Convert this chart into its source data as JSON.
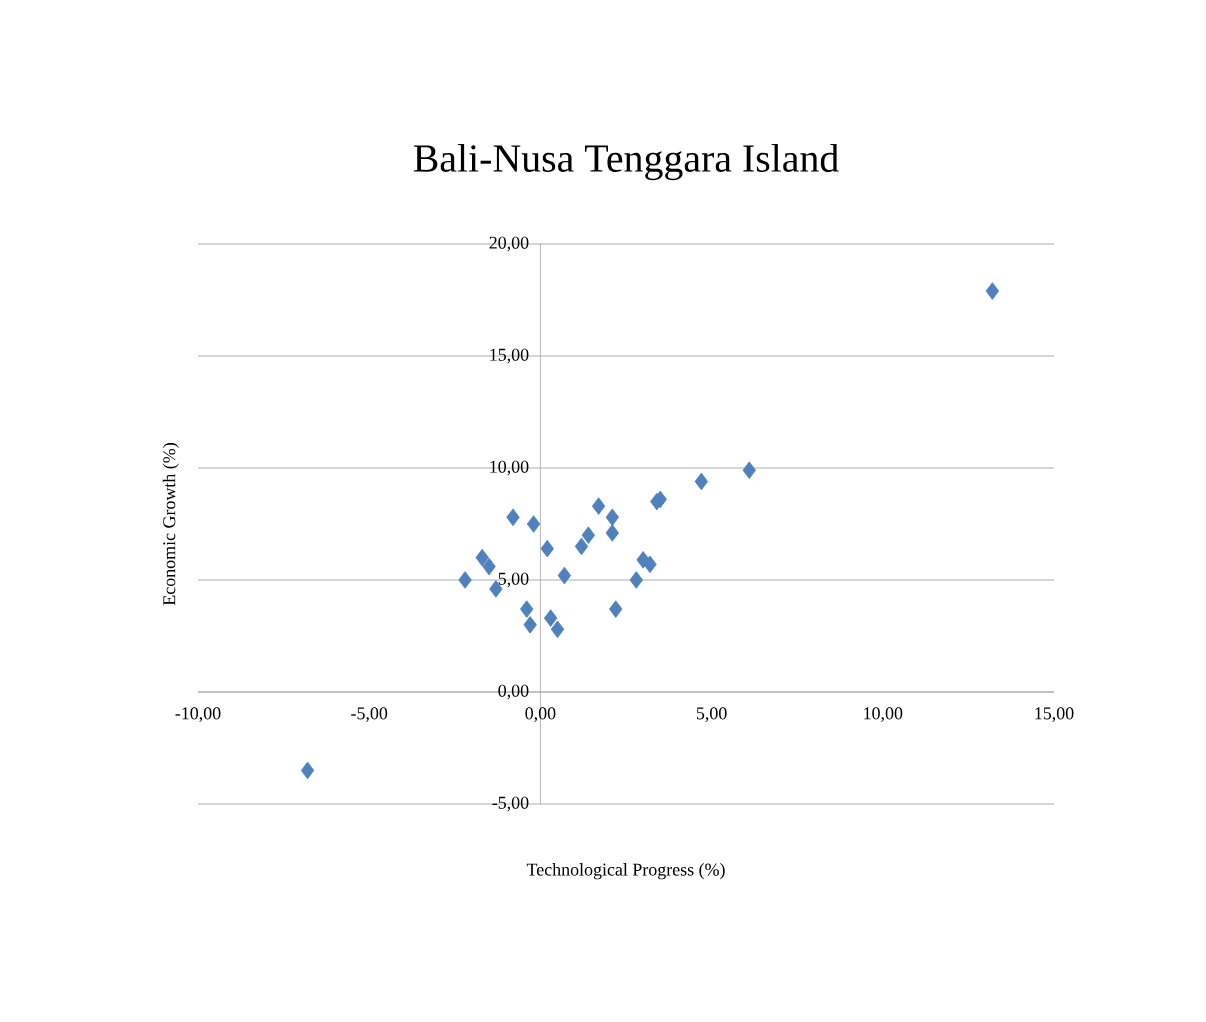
{
  "chart_data": {
    "type": "scatter",
    "title": "Bali-Nusa Tenggara Island",
    "xlabel": "Technological Progress (%)",
    "ylabel": "Economic Growth (%)",
    "xlim": [
      -10,
      15
    ],
    "ylim": [
      -5,
      20
    ],
    "xticks": [
      {
        "value": -10,
        "label": "-10,00"
      },
      {
        "value": -5,
        "label": "-5,00"
      },
      {
        "value": 0,
        "label": "0,00"
      },
      {
        "value": 5,
        "label": "5,00"
      },
      {
        "value": 10,
        "label": "10,00"
      },
      {
        "value": 15,
        "label": "15,00"
      }
    ],
    "yticks": [
      {
        "value": -5,
        "label": "-5,00"
      },
      {
        "value": 0,
        "label": "0,00"
      },
      {
        "value": 5,
        "label": "5,00"
      },
      {
        "value": 10,
        "label": "10,00"
      },
      {
        "value": 15,
        "label": "15,00"
      },
      {
        "value": 20,
        "label": "20,00"
      }
    ],
    "grid": "y",
    "marker": "diamond",
    "series": [
      {
        "color": "#4f81bd",
        "x": [
          13.2,
          -6.8,
          6.1,
          4.7,
          3.5,
          3.4,
          1.7,
          2.1,
          2.1,
          1.4,
          1.2,
          -0.8,
          -0.2,
          0.2,
          -1.7,
          -1.5,
          -1.3,
          -2.2,
          0.7,
          -0.4,
          -0.3,
          0.3,
          0.5,
          2.2,
          2.8,
          3.0,
          3.2
        ],
        "values": [
          17.9,
          -3.5,
          9.9,
          9.4,
          8.6,
          8.5,
          8.3,
          7.8,
          7.1,
          7.0,
          6.5,
          7.8,
          7.5,
          6.4,
          6.0,
          5.6,
          4.6,
          5.0,
          5.2,
          3.7,
          3.0,
          3.3,
          2.8,
          3.7,
          5.0,
          5.9,
          5.7
        ]
      }
    ]
  }
}
